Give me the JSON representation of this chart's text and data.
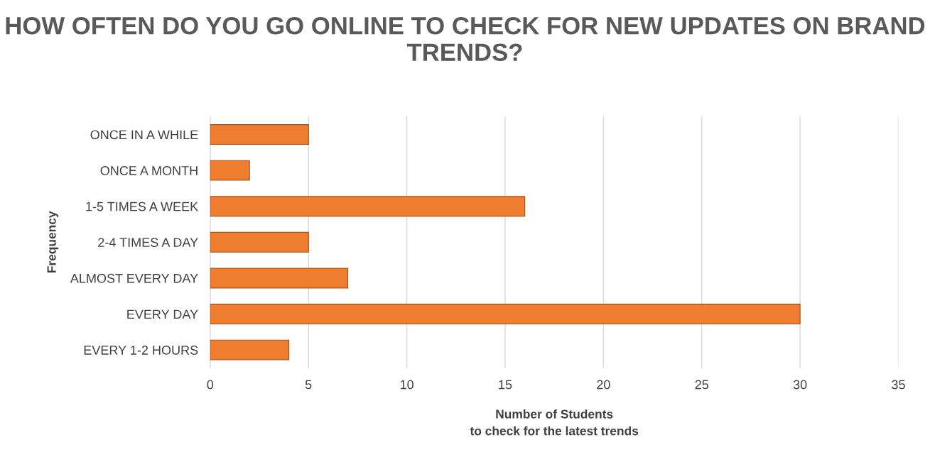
{
  "chart_data": {
    "type": "bar",
    "orientation": "horizontal",
    "title": "HOW OFTEN DO YOU GO ONLINE TO CHECK FOR NEW UPDATES ON BRAND TRENDS?",
    "categories": [
      "ONCE IN A WHILE",
      "ONCE A MONTH",
      "1-5 TIMES A WEEK",
      "2-4 TIMES A DAY",
      "ALMOST EVERY DAY",
      "EVERY DAY",
      "EVERY 1-2 HOURS"
    ],
    "values": [
      5,
      2,
      16,
      5,
      7,
      30,
      4
    ],
    "color": "#ee7d2f",
    "xlim": [
      0,
      35
    ],
    "xticks": [
      0,
      5,
      10,
      15,
      20,
      25,
      30,
      35
    ],
    "xlabel": "Number of Students\nto check for the latest trends",
    "ylabel": "Frequency",
    "grid": "x",
    "legend": false
  }
}
